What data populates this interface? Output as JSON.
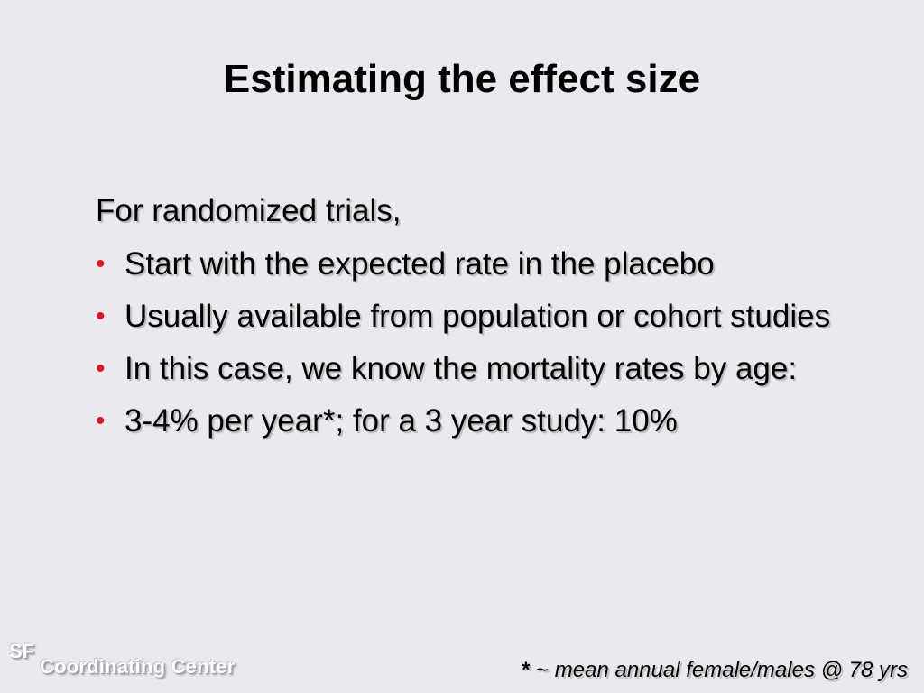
{
  "slide": {
    "title": "Estimating the effect size",
    "intro": "For randomized trials,",
    "bullets": [
      "Start with the expected rate in the placebo",
      "Usually available from population or cohort studies",
      "In this case, we know the mortality rates by age:",
      "3-4% per year*; for a 3 year study: 10%"
    ],
    "bullet_symbol": "•",
    "footnote": {
      "star": "*",
      "tilde": "~",
      "text": "mean annual female/males @ 78 yrs"
    },
    "logo": {
      "line1": "SF",
      "line2": "Coordinating Center"
    }
  },
  "colors": {
    "background": "#e9eaed",
    "bullet": "#e1141f",
    "text": "#000000",
    "logo_text": "#ffffff"
  }
}
